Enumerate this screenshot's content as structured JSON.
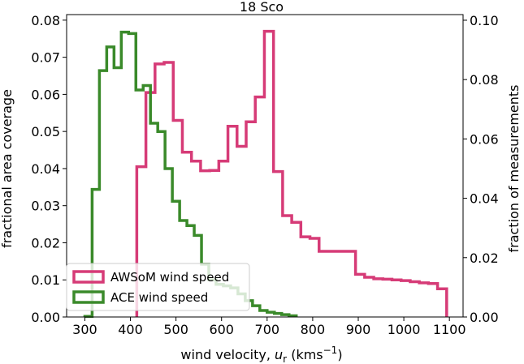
{
  "chart_data": {
    "type": "histogram",
    "title": "18 Sco",
    "xlabel": "wind velocity, u_r (kms⁻¹)",
    "xlabel_parts": {
      "prefix": "wind velocity, ",
      "var": "u",
      "sub": "r",
      "unit_open": " (kms",
      "sup": "−1",
      "unit_close": ")"
    },
    "ylabel_left": "fractional area coverage",
    "ylabel_right": "fraction of measurements",
    "xlim": [
      260,
      1130
    ],
    "ylim_left": [
      0,
      0.0815
    ],
    "ylim_right": [
      0,
      0.1019
    ],
    "xticks": [
      300,
      400,
      500,
      600,
      700,
      800,
      900,
      1000,
      1100
    ],
    "xtick_labels": [
      "300",
      "400",
      "500",
      "600",
      "700",
      "800",
      "900",
      "1000",
      "1100"
    ],
    "yticks_left": [
      0.0,
      0.01,
      0.02,
      0.03,
      0.04,
      0.05,
      0.06,
      0.07,
      0.08
    ],
    "ytick_labels_left": [
      "0.00",
      "0.01",
      "0.02",
      "0.03",
      "0.04",
      "0.05",
      "0.06",
      "0.07",
      "0.08"
    ],
    "yticks_right": [
      0.0,
      0.02,
      0.04,
      0.06,
      0.08,
      0.1
    ],
    "ytick_labels_right": [
      "0.00",
      "0.02",
      "0.04",
      "0.06",
      "0.08",
      "0.10"
    ],
    "legend_position": "lower-left",
    "series": [
      {
        "name": "AWSoM wind speed",
        "axis": "left",
        "color": "#d63b77",
        "bin_edges": [
          414,
          434,
          454,
          474,
          494,
          514,
          534,
          554,
          574,
          594,
          614,
          634,
          654,
          674,
          694,
          714,
          734,
          754,
          774,
          794,
          814,
          834,
          854,
          874,
          894,
          914,
          934,
          954,
          974,
          994,
          1014,
          1034,
          1054,
          1074,
          1094
        ],
        "values": [
          0.0405,
          0.0605,
          0.0682,
          0.0686,
          0.053,
          0.0444,
          0.042,
          0.0394,
          0.0395,
          0.042,
          0.0514,
          0.046,
          0.0526,
          0.0593,
          0.077,
          0.0392,
          0.0273,
          0.0255,
          0.0216,
          0.0212,
          0.0177,
          0.0177,
          0.0177,
          0.0177,
          0.0115,
          0.0107,
          0.0103,
          0.0102,
          0.01,
          0.0098,
          0.0095,
          0.0092,
          0.009,
          0.0076
        ]
      },
      {
        "name": "ACE wind speed",
        "axis": "right",
        "color": "#3a8a2a",
        "bin_edges": [
          300,
          316,
          332,
          348,
          364,
          380,
          396,
          412,
          428,
          444,
          460,
          476,
          492,
          508,
          524,
          540,
          556,
          572,
          588,
          604,
          620,
          636,
          652,
          668,
          684,
          700,
          716,
          732,
          748,
          764
        ],
        "values": [
          0.0002,
          0.043,
          0.083,
          0.091,
          0.084,
          0.096,
          0.0955,
          0.0765,
          0.078,
          0.0653,
          0.0625,
          0.05,
          0.039,
          0.0325,
          0.0308,
          0.0275,
          0.0178,
          0.0125,
          0.011,
          0.0105,
          0.0098,
          0.0078,
          0.0055,
          0.0038,
          0.0022,
          0.0016,
          0.0012,
          0.0008,
          0.0004
        ]
      }
    ]
  }
}
